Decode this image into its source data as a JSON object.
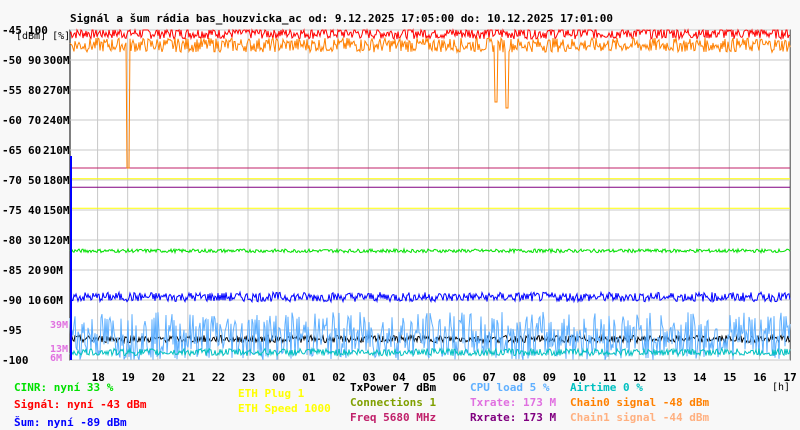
{
  "title": "Signál a šum rádia bas_houzvicka_ac od: 9.12.2025 17:05:00 do: 10.12.2025 17:01:00",
  "units_left": "[dBm] [%]",
  "units_right": "[h]",
  "legend": [
    {
      "key": "cinr",
      "text": "CINR: nyní 33 %",
      "color": "#00e000"
    },
    {
      "key": "signal",
      "text": "Signál: nyní -43 dBm",
      "color": "#ff0000"
    },
    {
      "key": "sum",
      "text": "Šum: nyní -89 dBm",
      "color": "#0000ff"
    },
    {
      "key": "eth_plug",
      "text": "ETH Plug 1",
      "color": "#ffff00"
    },
    {
      "key": "eth_speed",
      "text": "ETH Speed 1000",
      "color": "#ffff00"
    },
    {
      "key": "txpower",
      "text": "TxPower 7 dBm",
      "color": "#000000"
    },
    {
      "key": "connections",
      "text": "Connections 1",
      "color": "#80a000"
    },
    {
      "key": "freq",
      "text": "Freq 5680 MHz",
      "color": "#c0206a"
    },
    {
      "key": "cpu",
      "text": "CPU load 5 %",
      "color": "#60b0ff"
    },
    {
      "key": "txrate",
      "text": "Txrate: 173 M",
      "color": "#e070e0"
    },
    {
      "key": "rxrate",
      "text": "Rxrate: 173 M",
      "color": "#800080"
    },
    {
      "key": "airtime",
      "text": "Airtime 0 %",
      "color": "#00c0c0"
    },
    {
      "key": "chain0",
      "text": "Chain0 signal -48 dBm",
      "color": "#ff8000"
    },
    {
      "key": "chain1",
      "text": "Chain1 signal -44 dBm",
      "color": "#ffb080"
    }
  ],
  "chart_data": {
    "type": "line",
    "title": "Signál a šum rádia bas_houzvicka_ac od: 9.12.2025 17:05:00 do: 10.12.2025 17:01:00",
    "x_ticks": [
      "18",
      "19",
      "20",
      "21",
      "22",
      "23",
      "00",
      "01",
      "02",
      "03",
      "04",
      "05",
      "06",
      "07",
      "08",
      "09",
      "10",
      "11",
      "12",
      "13",
      "14",
      "15",
      "16",
      "17"
    ],
    "x_start_hour": 17.083,
    "x_end_hour": 17.017,
    "y_ticks_dbm": [
      -45,
      -50,
      -55,
      -60,
      -65,
      -70,
      -75,
      -80,
      -85,
      -90,
      -95,
      -100
    ],
    "y_ticks_pct": [
      100,
      90,
      80,
      70,
      60,
      50,
      40,
      30,
      20,
      10
    ],
    "y_ticks_rate": [
      "300M",
      "270M",
      "240M",
      "210M",
      "180M",
      "150M",
      "120M",
      "90M",
      "60M"
    ],
    "extra_labels": [
      {
        "text": "39M",
        "color": "#e070e0"
      },
      {
        "text": "13M",
        "color": "#e070e0"
      },
      {
        "text": "6M",
        "color": "#e070e0"
      }
    ],
    "ylim_dbm": [
      -100,
      -45
    ],
    "grid": true,
    "reference_lines": [
      {
        "name": "Freq",
        "value_dbm": -68.0,
        "color": "#c0206a"
      },
      {
        "name": "Txrate",
        "value_dbm": -71.2,
        "color": "#800080"
      },
      {
        "name": "ETH Speed",
        "value_dbm": -69.8,
        "color": "#ffff00"
      },
      {
        "name": "ETH Speed 2",
        "value_dbm": -74.7,
        "color": "#ffff00"
      }
    ],
    "series": [
      {
        "name": "Signál",
        "color": "#ff0000",
        "approx_dbm": -45.5,
        "noise": 1.0
      },
      {
        "name": "Chain0 signal",
        "color": "#ff8000",
        "approx_dbm": -47.5,
        "noise": 1.2,
        "dips": [
          {
            "hour": 19.0,
            "dbm": -68
          },
          {
            "hour": 7.25,
            "dbm": -57
          },
          {
            "hour": 7.6,
            "dbm": -58
          }
        ]
      },
      {
        "name": "CINR",
        "color": "#00e000",
        "approx_dbm": -81.8,
        "noise": 0.3
      },
      {
        "name": "Šum",
        "color": "#0000ff",
        "approx_dbm": -89.5,
        "noise": 0.8
      },
      {
        "name": "TxPower",
        "color": "#000000",
        "approx_dbm": -96.5,
        "noise": 0.6
      },
      {
        "name": "CPU load",
        "color": "#60b0ff",
        "approx_dbm": -96,
        "noise": 4
      },
      {
        "name": "Airtime",
        "color": "#00c0c0",
        "approx_dbm": -98.7,
        "noise": 0.6
      }
    ]
  }
}
